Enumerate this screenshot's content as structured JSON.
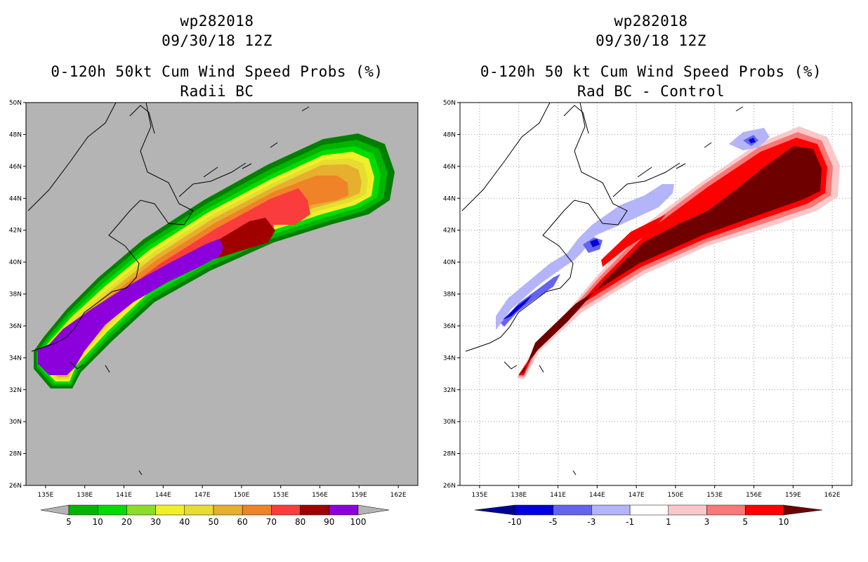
{
  "left": {
    "storm_id": "wp282018",
    "datetime": "09/30/18 12Z",
    "title": "0-120h 50kt Cum Wind Speed Probs (%)",
    "subtitle": "Radii BC",
    "lat_labels": [
      "50N",
      "48N",
      "46N",
      "44N",
      "42N",
      "40N",
      "38N",
      "36N",
      "34N",
      "32N",
      "30N",
      "28N",
      "26N"
    ],
    "lon_labels": [
      "135E",
      "138E",
      "141E",
      "144E",
      "147E",
      "150E",
      "153E",
      "156E",
      "159E",
      "162E"
    ],
    "colorbar": {
      "labels": [
        "5",
        "10",
        "20",
        "30",
        "40",
        "50",
        "60",
        "70",
        "80",
        "90",
        "100"
      ],
      "colors": [
        "#007f00",
        "#00b400",
        "#00dc00",
        "#8cdc28",
        "#f0f028",
        "#e6dc32",
        "#e6af2d",
        "#f08228",
        "#fa3c3c",
        "#a00000",
        "#8c00dc",
        "#b4b4b4"
      ]
    }
  },
  "right": {
    "storm_id": "wp282018",
    "datetime": "09/30/18 12Z",
    "title": "0-120h 50 kt Cum Wind Speed Probs (%)",
    "subtitle": "Rad BC - Control",
    "lat_labels": [
      "50N",
      "48N",
      "46N",
      "44N",
      "42N",
      "40N",
      "38N",
      "36N",
      "34N",
      "32N",
      "30N",
      "28N",
      "26N"
    ],
    "lon_labels": [
      "135E",
      "138E",
      "141E",
      "144E",
      "147E",
      "150E",
      "153E",
      "156E",
      "159E",
      "162E"
    ],
    "colorbar": {
      "labels": [
        "-10",
        "-5",
        "-3",
        "-1",
        "1",
        "3",
        "5",
        "10"
      ],
      "colors": [
        "#000096",
        "#0000dc",
        "#6464f0",
        "#b4b4fa",
        "#ffffff",
        "#fac8c8",
        "#fa7878",
        "#ff0000",
        "#6e0000"
      ]
    }
  }
}
